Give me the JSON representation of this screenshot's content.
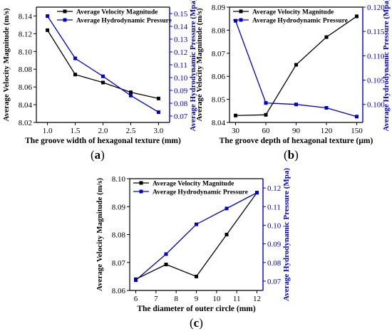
{
  "chart_data": [
    {
      "type": "line",
      "panel_label": "a",
      "xlabel": "The groove width of hexagonal texture (mm)",
      "ylabel_left": "Average Velocity Magnitude (m/s)",
      "ylabel_right": "Average Hydrodynamic Pressure (Mpa)",
      "x": [
        1.0,
        1.5,
        2.0,
        2.5,
        3.0
      ],
      "x_ticks": [
        "1.0",
        "1.5",
        "2.0",
        "2.5",
        "3.0"
      ],
      "xlim": [
        0.8,
        3.2
      ],
      "ylim_left": [
        8.02,
        8.15
      ],
      "ylim_right": [
        0.065,
        0.155
      ],
      "y_ticks_left": [
        "8.02",
        "8.04",
        "8.06",
        "8.08",
        "8.10",
        "8.12",
        "8.14"
      ],
      "y_ticks_right": [
        "0.07",
        "0.08",
        "0.09",
        "0.10",
        "0.11",
        "0.12",
        "0.13",
        "0.14",
        "0.15"
      ],
      "legend_position": "top-right",
      "series": [
        {
          "name": "Average Velocity Magnitude",
          "axis": "left",
          "color": "#000000",
          "values": [
            8.124,
            8.074,
            8.065,
            8.054,
            8.047
          ]
        },
        {
          "name": "Average Hydrodynamic Pressure",
          "axis": "right",
          "color": "#0000cc",
          "values": [
            0.148,
            0.115,
            0.101,
            0.086,
            0.073
          ]
        }
      ]
    },
    {
      "type": "line",
      "panel_label": "b",
      "xlabel": "The groove depth of hexagonal texture (μm)",
      "ylabel_left": "Average Velocity Magnitude (m/s)",
      "ylabel_right": "Average Hydrodynamic Pressure (Mpa)",
      "x": [
        30,
        60,
        90,
        120,
        150
      ],
      "x_ticks": [
        "30",
        "60",
        "90",
        "120",
        "150"
      ],
      "xlim": [
        24,
        156
      ],
      "ylim_left": [
        8.04,
        8.09
      ],
      "ylim_right": [
        0.0963,
        0.12
      ],
      "y_ticks_left": [
        "8.04",
        "8.05",
        "8.06",
        "8.07",
        "8.08",
        "8.09"
      ],
      "y_ticks_right": [
        "0.100",
        "0.105",
        "0.110",
        "0.115",
        "0.120"
      ],
      "legend_position": "top-left",
      "series": [
        {
          "name": "Average Velocity Magnitude",
          "axis": "left",
          "color": "#000000",
          "values": [
            8.043,
            8.0433,
            8.065,
            8.077,
            8.086
          ]
        },
        {
          "name": "Average Hydrodynamic Pressure",
          "axis": "right",
          "color": "#0000cc",
          "values": [
            0.1172,
            0.1003,
            0.1,
            0.0993,
            0.0975
          ]
        }
      ]
    },
    {
      "type": "line",
      "panel_label": "c",
      "xlabel": "The diameter of outer circle (mm)",
      "ylabel_left": "Average Velocity Magnitude (m/s)",
      "ylabel_right": "Average Hydrodynamic Pressure (Mpa)",
      "x": [
        6.0,
        7.5,
        9.0,
        10.5,
        12.0
      ],
      "x_ticks": [
        "6",
        "7",
        "8",
        "9",
        "10",
        "11",
        "12"
      ],
      "x_tick_values": [
        6,
        7,
        8,
        9,
        10,
        11,
        12
      ],
      "xlim": [
        5.7,
        12.3
      ],
      "ylim_left": [
        8.06,
        8.1
      ],
      "ylim_right": [
        0.065,
        0.125
      ],
      "y_ticks_left": [
        "8.06",
        "8.07",
        "8.08",
        "8.09",
        "8.10"
      ],
      "y_ticks_right": [
        "0.07",
        "0.08",
        "0.09",
        "0.10",
        "0.11",
        "0.12"
      ],
      "legend_position": "top-left",
      "series": [
        {
          "name": "Average Velocity Magnitude",
          "axis": "left",
          "color": "#000000",
          "values": [
            8.064,
            8.0693,
            8.065,
            8.08,
            8.095
          ]
        },
        {
          "name": "Average Hydrodynamic Pressure",
          "axis": "right",
          "color": "#0000cc",
          "values": [
            0.0705,
            0.0845,
            0.1005,
            0.109,
            0.1175
          ]
        }
      ]
    }
  ]
}
